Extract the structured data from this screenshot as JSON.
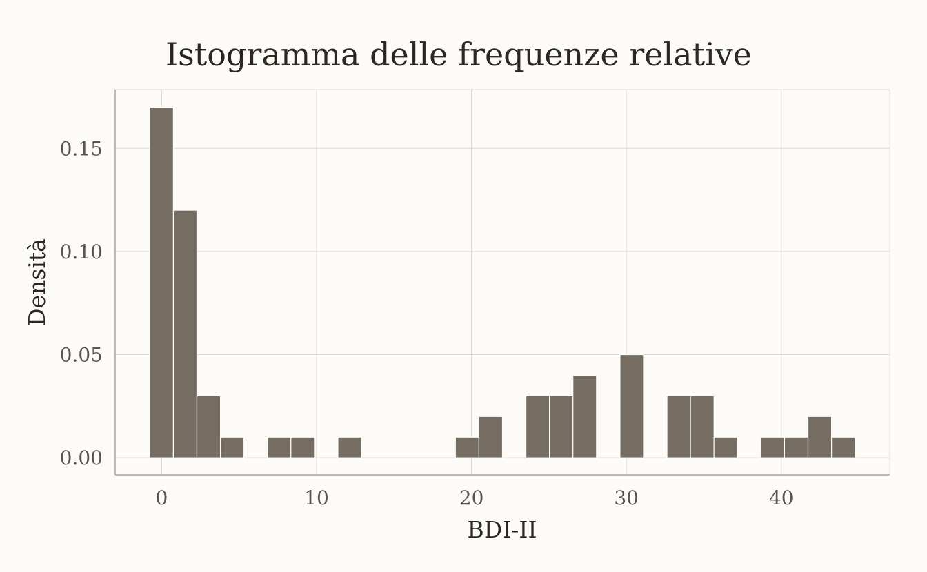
{
  "chart_data": {
    "type": "bar",
    "title": "Istogramma delle frequenze relative",
    "xlabel": "BDI-II",
    "ylabel": "Densità",
    "xlim": [
      -3,
      47
    ],
    "ylim": [
      -0.0083,
      0.1785
    ],
    "x_ticks": [
      0,
      10,
      20,
      30,
      40
    ],
    "x_tick_labels": [
      "0",
      "10",
      "20",
      "30",
      "40"
    ],
    "y_ticks": [
      0,
      0.05,
      0.1,
      0.15
    ],
    "y_tick_labels": [
      "0.00",
      "0.05",
      "0.10",
      "0.15"
    ],
    "bin_width": 1.5172,
    "bins": [
      {
        "x": 0.0,
        "density": 0.17
      },
      {
        "x": 1.517,
        "density": 0.12
      },
      {
        "x": 3.034,
        "density": 0.03
      },
      {
        "x": 4.552,
        "density": 0.01
      },
      {
        "x": 7.586,
        "density": 0.01
      },
      {
        "x": 9.103,
        "density": 0.01
      },
      {
        "x": 12.138,
        "density": 0.01
      },
      {
        "x": 19.724,
        "density": 0.01
      },
      {
        "x": 21.241,
        "density": 0.02
      },
      {
        "x": 24.276,
        "density": 0.03
      },
      {
        "x": 25.793,
        "density": 0.03
      },
      {
        "x": 27.31,
        "density": 0.04
      },
      {
        "x": 30.345,
        "density": 0.05
      },
      {
        "x": 33.379,
        "density": 0.03
      },
      {
        "x": 34.897,
        "density": 0.03
      },
      {
        "x": 36.414,
        "density": 0.01
      },
      {
        "x": 39.448,
        "density": 0.01
      },
      {
        "x": 40.966,
        "density": 0.01
      },
      {
        "x": 42.483,
        "density": 0.02
      },
      {
        "x": 44.0,
        "density": 0.01
      }
    ],
    "grid": true,
    "colors": {
      "bar": "#756c62",
      "bar_edge": "#fcfbf7",
      "background": "#fcfbf7"
    }
  }
}
